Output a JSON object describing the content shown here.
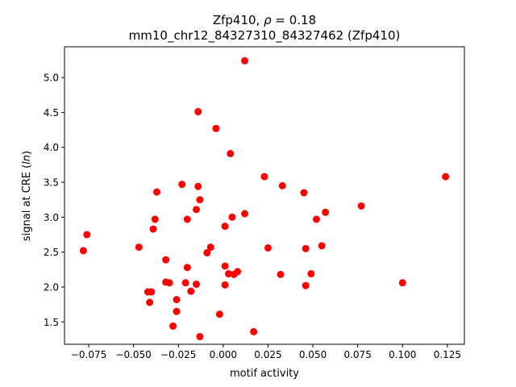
{
  "chart_data": {
    "type": "scatter",
    "title_line1_prefix": "Zfp410, ",
    "title_rho_symbol": "ρ",
    "title_rho_suffix": " = 0.18",
    "title_line2": "mm10_chr12_84327310_84327462 (Zfp410)",
    "xlabel": "motif activity",
    "ylabel_prefix": "signal at CRE (",
    "ylabel_italic": "ln",
    "ylabel_suffix": ")",
    "xlim": [
      -0.0885,
      0.1345
    ],
    "ylim": [
      1.18,
      5.44
    ],
    "xticks": [
      -0.075,
      -0.05,
      -0.025,
      0.0,
      0.025,
      0.05,
      0.075,
      0.1,
      0.125
    ],
    "xtick_labels": [
      "−0.075",
      "−0.050",
      "−0.025",
      "0.000",
      "0.025",
      "0.050",
      "0.075",
      "0.100",
      "0.125"
    ],
    "yticks": [
      1.5,
      2.0,
      2.5,
      3.0,
      3.5,
      4.0,
      4.5,
      5.0
    ],
    "ytick_labels": [
      "1.5",
      "2.0",
      "2.5",
      "3.0",
      "3.5",
      "4.0",
      "4.5",
      "5.0"
    ],
    "marker_color": "#ff0000",
    "grid": false,
    "points": [
      {
        "x": 0.012,
        "y": 5.24
      },
      {
        "x": -0.014,
        "y": 4.51
      },
      {
        "x": -0.004,
        "y": 4.27
      },
      {
        "x": 0.004,
        "y": 3.91
      },
      {
        "x": 0.124,
        "y": 3.58
      },
      {
        "x": 0.023,
        "y": 3.58
      },
      {
        "x": -0.023,
        "y": 3.47
      },
      {
        "x": 0.033,
        "y": 3.45
      },
      {
        "x": -0.014,
        "y": 3.44
      },
      {
        "x": -0.037,
        "y": 3.36
      },
      {
        "x": 0.045,
        "y": 3.35
      },
      {
        "x": -0.013,
        "y": 3.25
      },
      {
        "x": 0.077,
        "y": 3.16
      },
      {
        "x": -0.015,
        "y": 3.11
      },
      {
        "x": 0.057,
        "y": 3.07
      },
      {
        "x": 0.012,
        "y": 3.05
      },
      {
        "x": 0.005,
        "y": 3.0
      },
      {
        "x": -0.02,
        "y": 2.97
      },
      {
        "x": -0.038,
        "y": 2.97
      },
      {
        "x": 0.052,
        "y": 2.97
      },
      {
        "x": 0.001,
        "y": 2.87
      },
      {
        "x": -0.039,
        "y": 2.83
      },
      {
        "x": -0.076,
        "y": 2.75
      },
      {
        "x": 0.055,
        "y": 2.59
      },
      {
        "x": -0.047,
        "y": 2.57
      },
      {
        "x": -0.007,
        "y": 2.57
      },
      {
        "x": 0.025,
        "y": 2.56
      },
      {
        "x": 0.046,
        "y": 2.55
      },
      {
        "x": -0.078,
        "y": 2.52
      },
      {
        "x": -0.009,
        "y": 2.49
      },
      {
        "x": -0.032,
        "y": 2.39
      },
      {
        "x": 0.001,
        "y": 2.3
      },
      {
        "x": -0.02,
        "y": 2.28
      },
      {
        "x": 0.008,
        "y": 2.22
      },
      {
        "x": 0.003,
        "y": 2.19
      },
      {
        "x": 0.006,
        "y": 2.18
      },
      {
        "x": 0.032,
        "y": 2.18
      },
      {
        "x": 0.049,
        "y": 2.19
      },
      {
        "x": -0.032,
        "y": 2.07
      },
      {
        "x": -0.03,
        "y": 2.06
      },
      {
        "x": -0.021,
        "y": 2.06
      },
      {
        "x": 0.1,
        "y": 2.06
      },
      {
        "x": -0.015,
        "y": 2.04
      },
      {
        "x": 0.001,
        "y": 2.03
      },
      {
        "x": 0.046,
        "y": 2.02
      },
      {
        "x": -0.042,
        "y": 1.93
      },
      {
        "x": -0.04,
        "y": 1.93
      },
      {
        "x": -0.018,
        "y": 1.94
      },
      {
        "x": -0.026,
        "y": 1.82
      },
      {
        "x": -0.041,
        "y": 1.78
      },
      {
        "x": -0.026,
        "y": 1.65
      },
      {
        "x": -0.002,
        "y": 1.61
      },
      {
        "x": -0.028,
        "y": 1.44
      },
      {
        "x": 0.017,
        "y": 1.36
      },
      {
        "x": -0.013,
        "y": 1.29
      }
    ]
  }
}
